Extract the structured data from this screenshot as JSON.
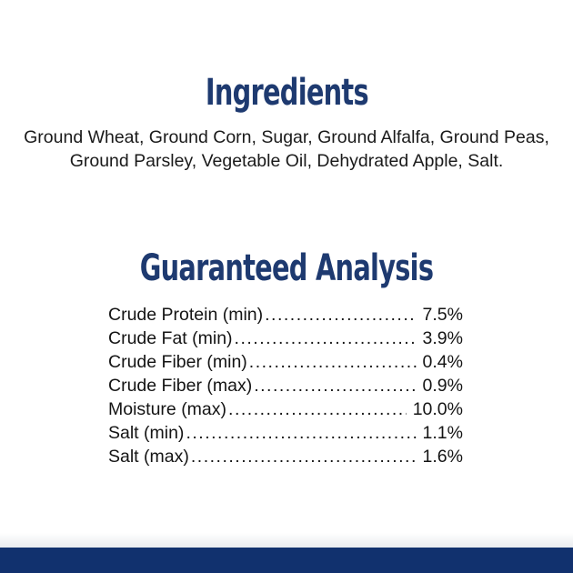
{
  "page": {
    "background_color": "#ffffff",
    "heading_color": "#1e3a70",
    "text_color": "#1a1a1a",
    "footer_bar_color": "#11316e"
  },
  "ingredients": {
    "title": "Ingredients",
    "lines": [
      "Ground Wheat, Ground Corn, Sugar, Ground Alfalfa, Ground Peas,",
      "Ground Parsley, Vegetable Oil, Dehydrated Apple, Salt."
    ]
  },
  "analysis": {
    "title": "Guaranteed Analysis",
    "leader": "................................................................................................",
    "rows": [
      {
        "label": "Crude Protein (min)",
        "value": "7.5%"
      },
      {
        "label": "Crude Fat (min)",
        "value": "3.9%"
      },
      {
        "label": "Crude Fiber (min)",
        "value": "0.4%"
      },
      {
        "label": "Crude Fiber (max)",
        "value": "0.9%"
      },
      {
        "label": "Moisture (max)",
        "value": "10.0%"
      },
      {
        "label": "Salt (min)",
        "value": "1.1%"
      },
      {
        "label": "Salt (max)",
        "value": "1.6%"
      }
    ]
  }
}
